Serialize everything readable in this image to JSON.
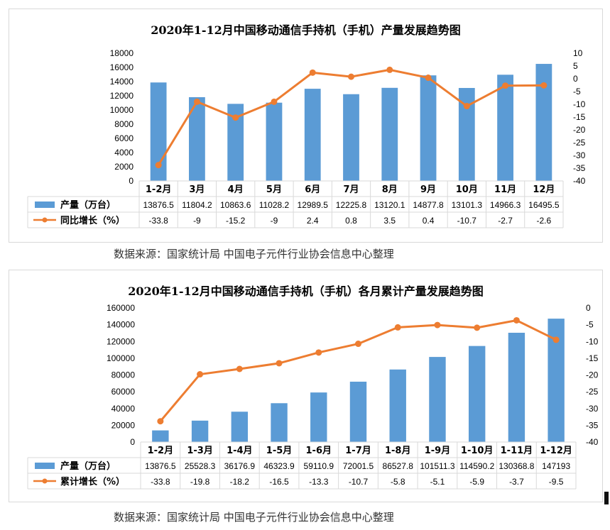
{
  "charts": [
    {
      "title": "2020年1-12月中国移动通信手持机（手机）产量发展趋势图",
      "source": "数据来源：国家统计局    中国电子元件行业协会信息中心整理"
    },
    {
      "title": "2020年1-12月中国移动通信手持机（手机）各月累计产量发展趋势图",
      "source": "数据来源：国家统计局    中国电子元件行业协会信息中心整理"
    }
  ],
  "colors": {
    "bar": "#5b9bd5",
    "line": "#ed7d31",
    "grid": "#d9d9d9",
    "text": "#000000"
  },
  "chart_data": [
    {
      "type": "bar",
      "title": "2020年1-12月中国移动通信手持机（手机）产量发展趋势图",
      "categories": [
        "1-2月",
        "3月",
        "4月",
        "5月",
        "6月",
        "7月",
        "8月",
        "9月",
        "10月",
        "11月",
        "12月"
      ],
      "series": [
        {
          "name": "产量（万台）",
          "type": "bar",
          "axis": "left",
          "values": [
            13876.5,
            11804.2,
            10863.6,
            11028.2,
            12989.5,
            12225.8,
            13120.1,
            14877.8,
            13101.3,
            14966.3,
            16495.5
          ]
        },
        {
          "name": "同比增长（%）",
          "type": "line",
          "axis": "right",
          "values": [
            -33.8,
            -9,
            -15.2,
            -9,
            2.4,
            0.8,
            3.5,
            0.4,
            -10.7,
            -2.7,
            -2.6
          ]
        }
      ],
      "table_values": [
        [
          "13876.5",
          "11804.2",
          "10863.6",
          "11028.2",
          "12989.5",
          "12225.8",
          "13120.1",
          "14877.8",
          "13101.3",
          "14966.3",
          "16495.5"
        ],
        [
          "-33.8",
          "-9",
          "-15.2",
          "-9",
          "2.4",
          "0.8",
          "3.5",
          "0.4",
          "-10.7",
          "-2.7",
          "-2.6"
        ]
      ],
      "ylim": [
        0,
        18000
      ],
      "yticks": [
        0,
        2000,
        4000,
        6000,
        8000,
        10000,
        12000,
        14000,
        16000,
        18000
      ],
      "y2lim": [
        -40,
        10
      ],
      "y2ticks": [
        -40,
        -35,
        -30,
        -25,
        -20,
        -15,
        -10,
        -5,
        0,
        5,
        10
      ],
      "grid": false,
      "legend": "data-table-left"
    },
    {
      "type": "bar",
      "title": "2020年1-12月中国移动通信手持机（手机）各月累计产量发展趋势图",
      "categories": [
        "1-2月",
        "1-3月",
        "1-4月",
        "1-5月",
        "1-6月",
        "1-7月",
        "1-8月",
        "1-9月",
        "1-10月",
        "1-11月",
        "1-12月"
      ],
      "series": [
        {
          "name": "产量（万台）",
          "type": "bar",
          "axis": "left",
          "values": [
            13876.5,
            25528.3,
            36176.9,
            46323.9,
            59110.9,
            72001.5,
            86527.8,
            101511.3,
            114590.2,
            130368.8,
            147193
          ]
        },
        {
          "name": "累计增长（%）",
          "type": "line",
          "axis": "right",
          "values": [
            -33.8,
            -19.8,
            -18.2,
            -16.5,
            -13.3,
            -10.7,
            -5.8,
            -5.1,
            -5.9,
            -3.7,
            -9.5
          ]
        }
      ],
      "table_values": [
        [
          "13876.5",
          "25528.3",
          "36176.9",
          "46323.9",
          "59110.9",
          "72001.5",
          "86527.8",
          "101511.3",
          "114590.2",
          "130368.8",
          "147193"
        ],
        [
          "-33.8",
          "-19.8",
          "-18.2",
          "-16.5",
          "-13.3",
          "-10.7",
          "-5.8",
          "-5.1",
          "-5.9",
          "-3.7",
          "-9.5"
        ]
      ],
      "ylim": [
        0,
        160000
      ],
      "yticks": [
        0,
        20000,
        40000,
        60000,
        80000,
        100000,
        120000,
        140000,
        160000
      ],
      "y2lim": [
        -40,
        0
      ],
      "y2ticks": [
        -40,
        -35,
        -30,
        -25,
        -20,
        -15,
        -10,
        -5,
        0
      ],
      "grid": false,
      "legend": "data-table-left"
    }
  ]
}
